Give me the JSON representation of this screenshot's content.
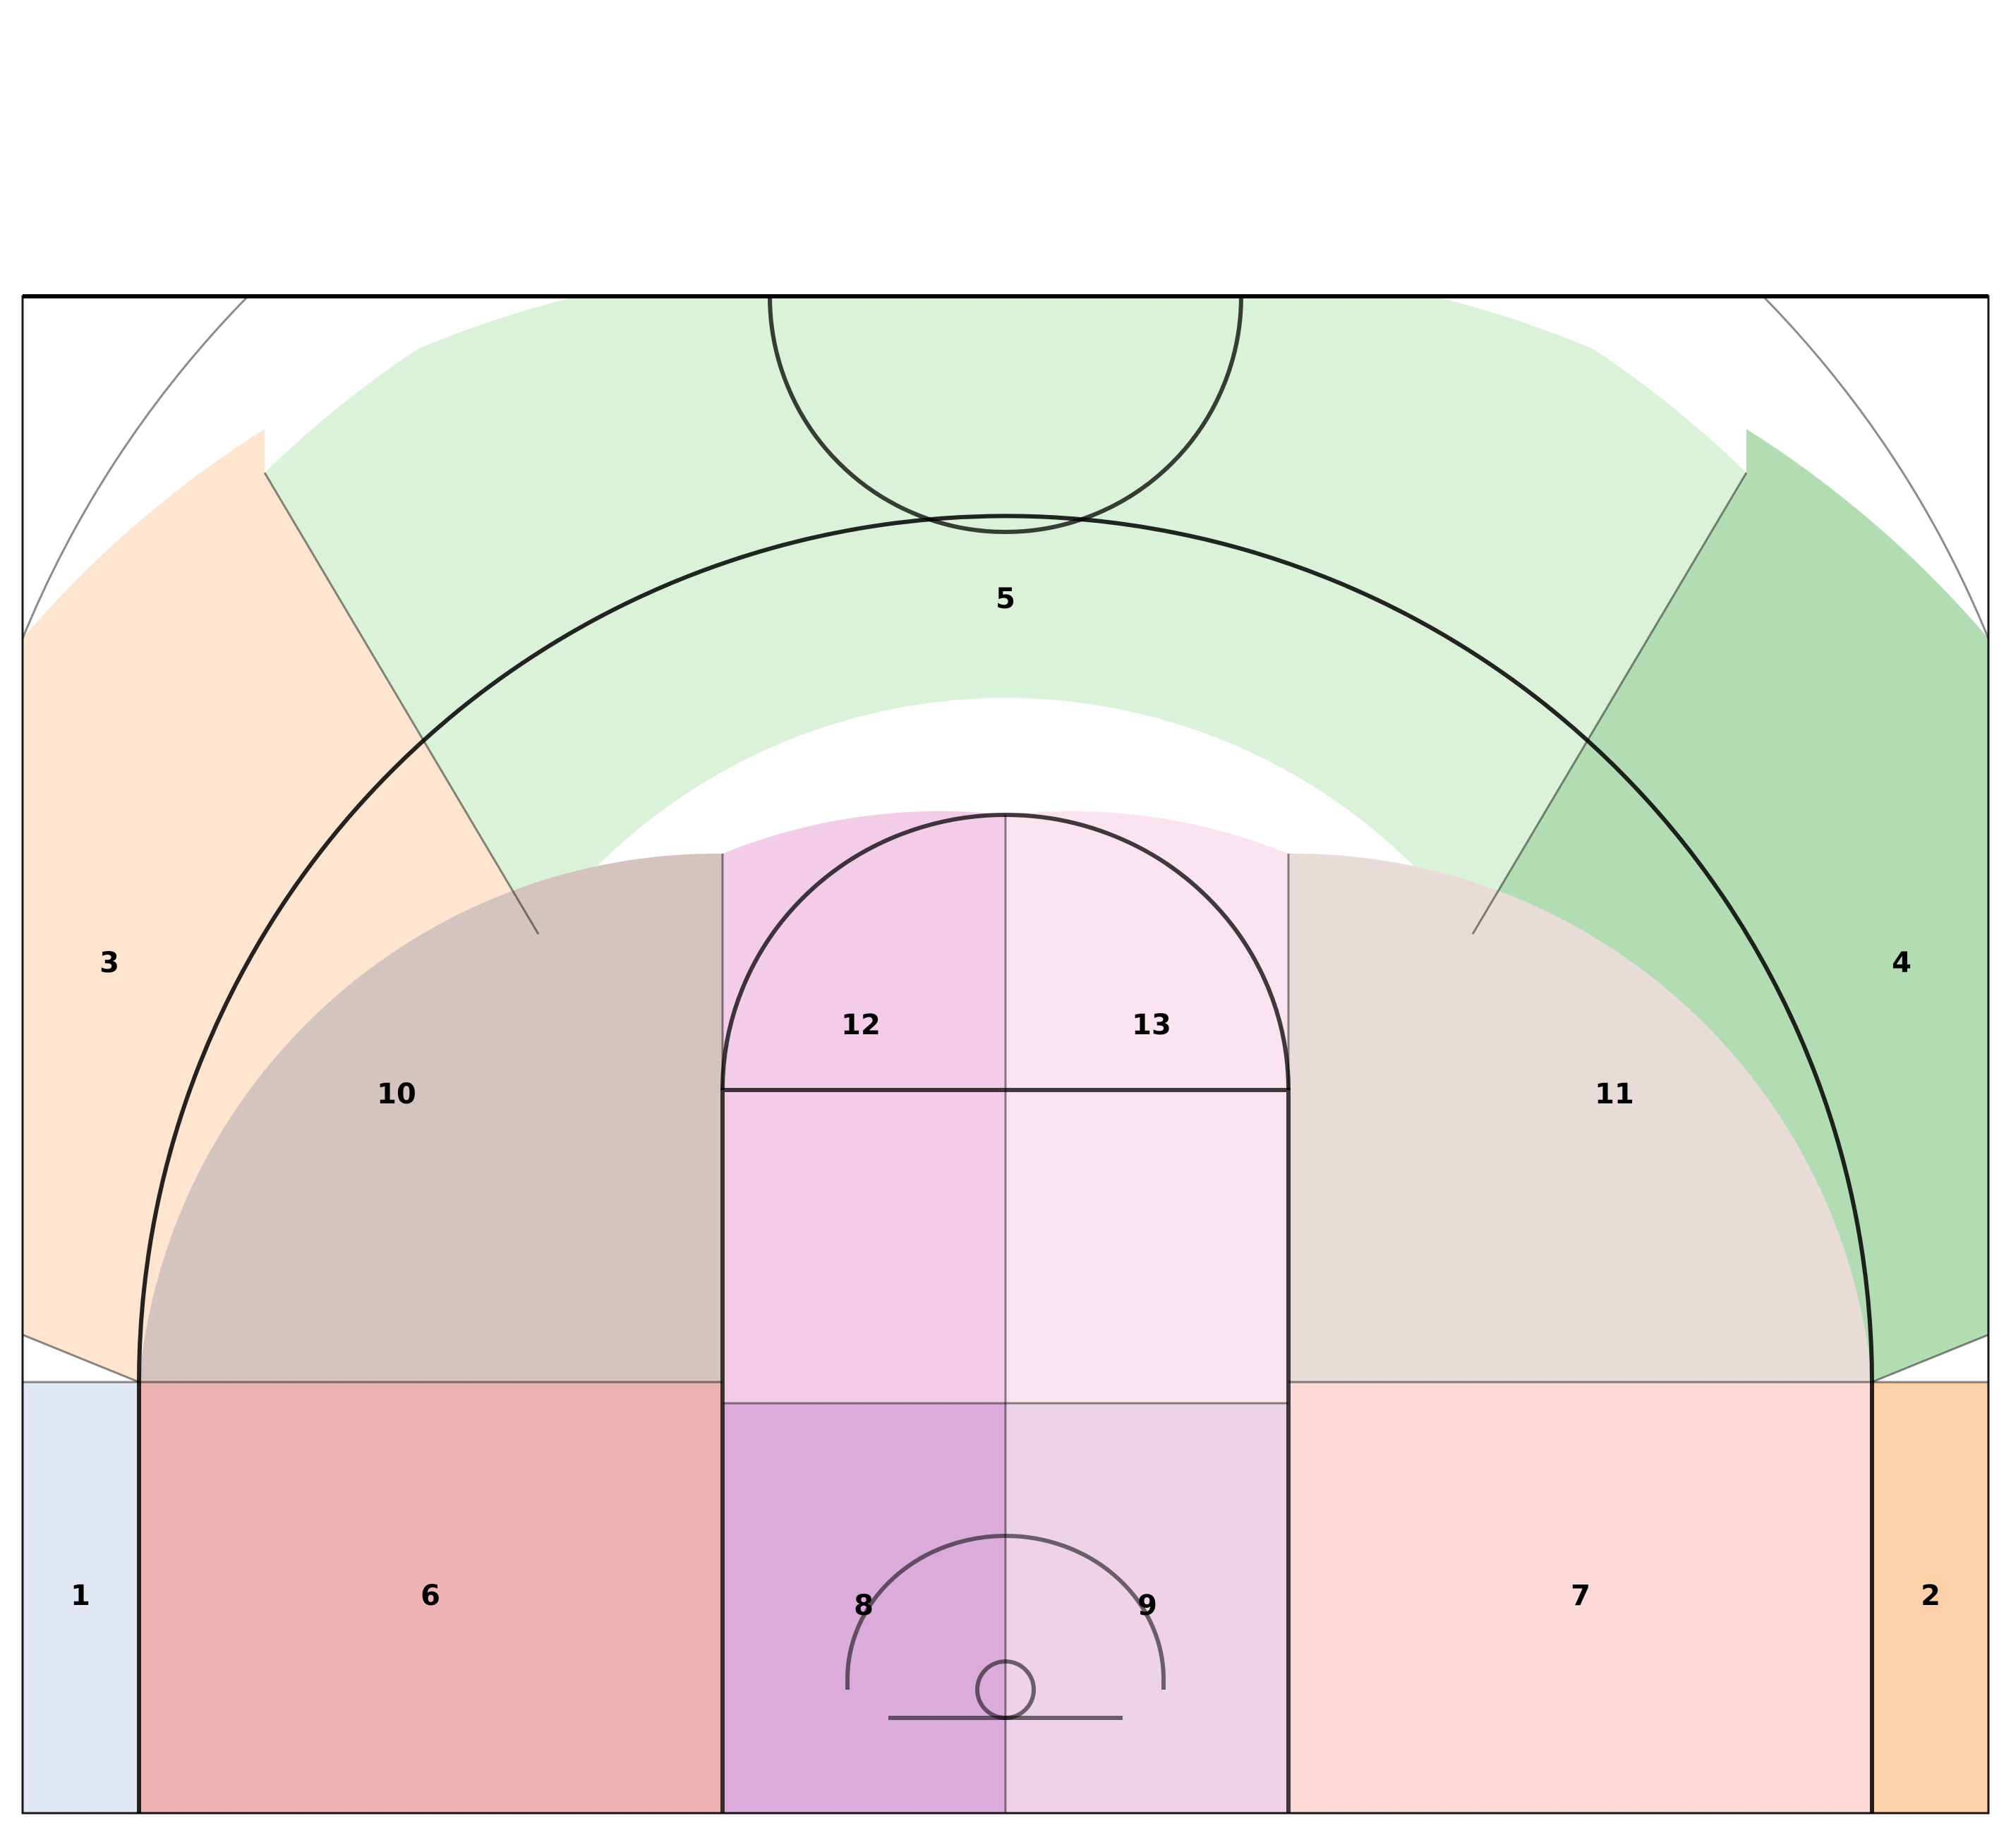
{
  "court": {
    "zones": [
      {
        "id": "1",
        "label": "1",
        "color": "#e1e8f4"
      },
      {
        "id": "2",
        "label": "2",
        "color": "#fdd0a8"
      },
      {
        "id": "3",
        "label": "3",
        "color": "#fde5cf"
      },
      {
        "id": "4",
        "label": "4",
        "color": "#b2ddb3"
      },
      {
        "id": "5",
        "label": "5",
        "color": "#daf2d7"
      },
      {
        "id": "6",
        "label": "6",
        "color": "#edb2b2"
      },
      {
        "id": "7",
        "label": "7",
        "color": "#fddad8"
      },
      {
        "id": "8",
        "label": "8",
        "color": "#daabdb"
      },
      {
        "id": "9",
        "label": "9",
        "color": "#edd3e5"
      },
      {
        "id": "10",
        "label": "10",
        "color": "#d5c3c0"
      },
      {
        "id": "11",
        "label": "11",
        "color": "#e7dcd7"
      },
      {
        "id": "12",
        "label": "12",
        "color": "#f3cce8"
      },
      {
        "id": "13",
        "label": "13",
        "color": "#fbe4ef"
      }
    ]
  }
}
